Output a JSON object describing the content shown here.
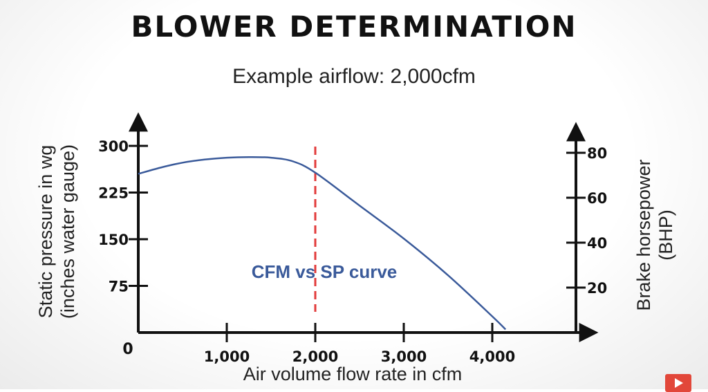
{
  "title": "BLOWER DETERMINATION",
  "subtitle": "Example airflow: 2,000cfm",
  "chart_data": {
    "type": "line",
    "xlabel": "Air volume flow rate in cfm",
    "ylabel_left": [
      "Static pressure in wg",
      "(inches water gauge)"
    ],
    "ylabel_right": [
      "Brake horsepower",
      "(BHP)"
    ],
    "origin_label": "0",
    "x_ticks": [
      {
        "value": 1000,
        "label": "1,000"
      },
      {
        "value": 2000,
        "label": "2,000"
      },
      {
        "value": 3000,
        "label": "3,000"
      },
      {
        "value": 4000,
        "label": "4,000"
      }
    ],
    "y_left_ticks": [
      {
        "value": 75,
        "label": "75"
      },
      {
        "value": 150,
        "label": "150"
      },
      {
        "value": 225,
        "label": "225"
      },
      {
        "value": 300,
        "label": "300"
      }
    ],
    "y_right_ticks": [
      {
        "value": 20,
        "label": "20"
      },
      {
        "value": 40,
        "label": "40"
      },
      {
        "value": 60,
        "label": "60"
      },
      {
        "value": 80,
        "label": "80"
      }
    ],
    "xlim": [
      0,
      5000
    ],
    "ylim_left": [
      0,
      300
    ],
    "ylim_right": [
      0,
      80
    ],
    "series": [
      {
        "name": "CFM vs SP curve",
        "color": "#3a5a9a",
        "x": [
          0,
          250,
          500,
          750,
          1000,
          1250,
          1500,
          1750,
          2000,
          2500,
          3000,
          3500,
          4000,
          4150
        ],
        "y": [
          255,
          265,
          273,
          278,
          281,
          282,
          281,
          275,
          257,
          204,
          151,
          92,
          26,
          5
        ]
      }
    ],
    "reference_line": {
      "x": 2000,
      "color": "#e23b3b",
      "style": "dashed"
    },
    "grid": false,
    "legend": "none"
  }
}
